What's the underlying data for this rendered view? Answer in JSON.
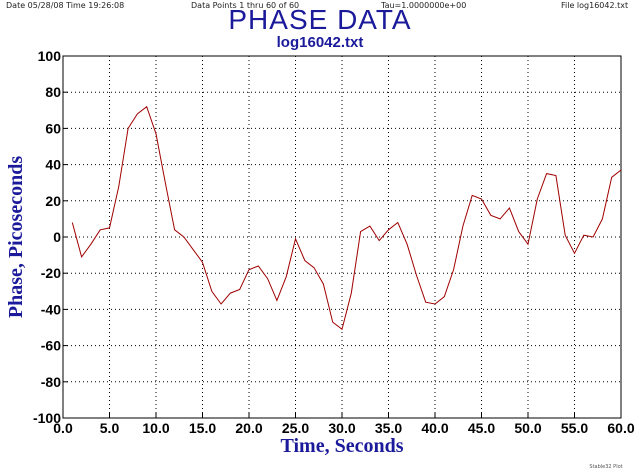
{
  "header": {
    "date": "Date  05/28/08   Time  19:26:08",
    "points": "Data Points 1 thru 60 of 60",
    "tau": "Tau=1.0000000e+00",
    "file": "File  log16042.txt",
    "watermark": "Stable32 Plot"
  },
  "chart_data": {
    "type": "line",
    "title": "PHASE DATA",
    "subtitle": "log16042.txt",
    "xlabel": "Time, Seconds",
    "ylabel": "Phase, Picoseconds",
    "xlim": [
      0,
      60
    ],
    "ylim": [
      -100,
      100
    ],
    "grid": true,
    "line_color": "#a00000",
    "title_color": "#1a1a9a",
    "x_ticks": [
      "0.0",
      "5.0",
      "10.0",
      "15.0",
      "20.0",
      "25.0",
      "30.0",
      "35.0",
      "40.0",
      "45.0",
      "50.0",
      "55.0",
      "60.0"
    ],
    "y_ticks": [
      "100",
      "80",
      "60",
      "40",
      "20",
      "0",
      "-20",
      "-40",
      "-60",
      "-80",
      "-100"
    ],
    "x": [
      1,
      2,
      3,
      4,
      5,
      6,
      7,
      8,
      9,
      10,
      11,
      12,
      13,
      14,
      15,
      16,
      17,
      18,
      19,
      20,
      21,
      22,
      23,
      24,
      25,
      26,
      27,
      28,
      29,
      30,
      31,
      32,
      33,
      34,
      35,
      36,
      37,
      38,
      39,
      40,
      41,
      42,
      43,
      44,
      45,
      46,
      47,
      48,
      49,
      50,
      51,
      52,
      53,
      54,
      55,
      56,
      57,
      58,
      59,
      60
    ],
    "y": [
      8,
      -11,
      -4,
      4,
      5,
      28,
      60,
      68,
      72,
      57,
      30,
      4,
      0,
      -7,
      -14,
      -30,
      -37,
      -31,
      -29,
      -18,
      -16,
      -23,
      -35,
      -22,
      -1,
      -13,
      -17,
      -26,
      -47,
      -51,
      -31,
      3,
      6,
      -2,
      4,
      8,
      -4,
      -21,
      -36,
      -37,
      -33,
      -18,
      6,
      23,
      21,
      12,
      10,
      16,
      3,
      -4,
      21,
      35,
      34,
      1,
      -9,
      1,
      0,
      10,
      33,
      37
    ]
  }
}
